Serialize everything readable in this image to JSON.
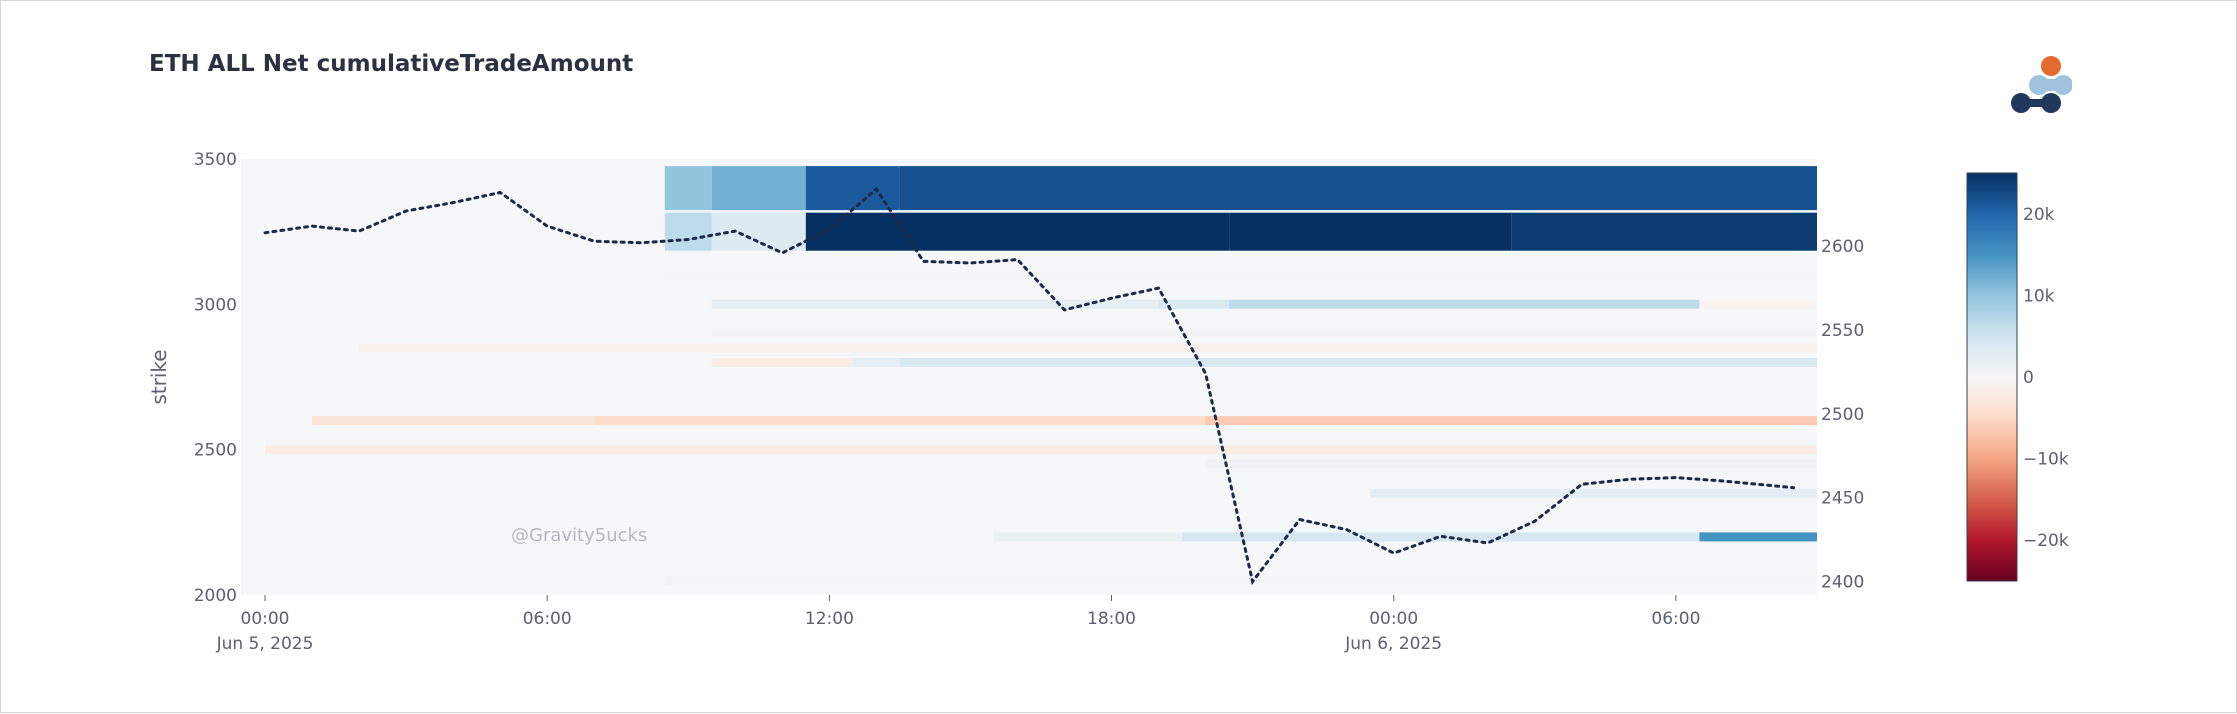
{
  "chart_data": {
    "type": "heatmap",
    "title": "ETH ALL Net cumulativeTradeAmount",
    "watermark": "@Gravity5ucks",
    "ylabel": "strike",
    "y_range": [
      2000,
      3500
    ],
    "y_ticks": [
      "3500",
      "3000",
      "2500",
      "2000"
    ],
    "y2_range": [
      2392,
      2652
    ],
    "y2_ticks": [
      "2600",
      "2550",
      "2500",
      "2450",
      "2400"
    ],
    "x_start": "2025-06-05T00:00",
    "x_end": "2025-06-06T09:00",
    "x_ticks": [
      {
        "t": "2025-06-05T00:00",
        "label": "00:00",
        "sub": "Jun 5, 2025"
      },
      {
        "t": "2025-06-05T06:00",
        "label": "06:00",
        "sub": ""
      },
      {
        "t": "2025-06-05T12:00",
        "label": "12:00",
        "sub": ""
      },
      {
        "t": "2025-06-05T18:00",
        "label": "18:00",
        "sub": ""
      },
      {
        "t": "2025-06-06T00:00",
        "label": "00:00",
        "sub": "Jun 6, 2025"
      },
      {
        "t": "2025-06-06T06:00",
        "label": "06:00",
        "sub": ""
      }
    ],
    "colorscale": {
      "min": -25000,
      "max": 25000,
      "ticks": [
        "20k",
        "10k",
        "0",
        "−10k",
        "−20k"
      ],
      "tick_values": [
        20000,
        10000,
        0,
        -10000,
        -20000
      ]
    },
    "heatmap_rows": [
      {
        "strike": 3400,
        "segments": [
          {
            "from": "2025-06-05T08:30",
            "to": "2025-06-05T09:30",
            "value": 10000
          },
          {
            "from": "2025-06-05T09:30",
            "to": "2025-06-05T11:30",
            "value": 12000
          },
          {
            "from": "2025-06-05T11:30",
            "to": "2025-06-05T13:30",
            "value": 21000
          },
          {
            "from": "2025-06-05T13:30",
            "to": "2025-06-06T09:00",
            "value": 22000
          }
        ]
      },
      {
        "strike": 3250,
        "segments": [
          {
            "from": "2025-06-05T08:30",
            "to": "2025-06-05T09:30",
            "value": 6500
          },
          {
            "from": "2025-06-05T09:30",
            "to": "2025-06-05T11:30",
            "value": 3500
          },
          {
            "from": "2025-06-05T11:30",
            "to": "2025-06-05T20:30",
            "value": 26000
          },
          {
            "from": "2025-06-05T20:30",
            "to": "2025-06-06T02:30",
            "value": 25000
          },
          {
            "from": "2025-06-06T02:30",
            "to": "2025-06-06T09:00",
            "value": 24000
          }
        ]
      },
      {
        "strike": 3100,
        "segments": [
          {
            "from": "2025-06-05T08:30",
            "to": "2025-06-06T09:00",
            "value": 500
          }
        ]
      },
      {
        "strike": 3000,
        "segments": [
          {
            "from": "2025-06-05T09:30",
            "to": "2025-06-05T19:00",
            "value": 2500
          },
          {
            "from": "2025-06-05T19:00",
            "to": "2025-06-05T20:30",
            "value": 4000
          },
          {
            "from": "2025-06-05T20:30",
            "to": "2025-06-06T06:30",
            "value": 6500
          },
          {
            "from": "2025-06-06T06:30",
            "to": "2025-06-06T09:00",
            "value": -700
          }
        ]
      },
      {
        "strike": 2900,
        "segments": [
          {
            "from": "2025-06-05T09:30",
            "to": "2025-06-06T09:00",
            "value": 700
          }
        ]
      },
      {
        "strike": 2850,
        "segments": [
          {
            "from": "2025-06-05T02:00",
            "to": "2025-06-06T09:00",
            "value": -1300
          }
        ]
      },
      {
        "strike": 2800,
        "segments": [
          {
            "from": "2025-06-05T09:30",
            "to": "2025-06-05T12:30",
            "value": -1800
          },
          {
            "from": "2025-06-05T12:30",
            "to": "2025-06-05T13:30",
            "value": 2500
          },
          {
            "from": "2025-06-05T13:30",
            "to": "2025-06-06T09:00",
            "value": 4200
          }
        ]
      },
      {
        "strike": 2600,
        "segments": [
          {
            "from": "2025-06-05T01:00",
            "to": "2025-06-05T07:00",
            "value": -3200
          },
          {
            "from": "2025-06-05T07:00",
            "to": "2025-06-05T20:00",
            "value": -4500
          },
          {
            "from": "2025-06-05T20:00",
            "to": "2025-06-06T09:00",
            "value": -6500
          }
        ]
      },
      {
        "strike": 2500,
        "segments": [
          {
            "from": "2025-06-05T00:00",
            "to": "2025-06-06T09:00",
            "value": -1800
          }
        ]
      },
      {
        "strike": 2450,
        "segments": [
          {
            "from": "2025-06-05T20:00",
            "to": "2025-06-06T09:00",
            "value": 1200
          }
        ]
      },
      {
        "strike": 2350,
        "segments": [
          {
            "from": "2025-06-05T23:30",
            "to": "2025-06-06T09:00",
            "value": 2500
          }
        ]
      },
      {
        "strike": 2200,
        "segments": [
          {
            "from": "2025-06-05T15:30",
            "to": "2025-06-05T19:30",
            "value": 1800
          },
          {
            "from": "2025-06-05T19:30",
            "to": "2025-06-06T06:30",
            "value": 4500
          },
          {
            "from": "2025-06-06T06:30",
            "to": "2025-06-06T09:00",
            "value": 15000
          }
        ]
      },
      {
        "strike": 2050,
        "segments": [
          {
            "from": "2025-06-05T08:30",
            "to": "2025-06-06T09:00",
            "value": 700
          }
        ]
      }
    ],
    "line": {
      "style": "dotted",
      "color": "#1c2a4a",
      "points": [
        [
          "2025-06-05T00:00",
          2608
        ],
        [
          "2025-06-05T01:00",
          2612
        ],
        [
          "2025-06-05T02:00",
          2609
        ],
        [
          "2025-06-05T03:00",
          2621
        ],
        [
          "2025-06-05T04:00",
          2626
        ],
        [
          "2025-06-05T05:00",
          2632
        ],
        [
          "2025-06-05T06:00",
          2612
        ],
        [
          "2025-06-05T07:00",
          2603
        ],
        [
          "2025-06-05T08:00",
          2602
        ],
        [
          "2025-06-05T09:00",
          2604
        ],
        [
          "2025-06-05T10:00",
          2609
        ],
        [
          "2025-06-05T11:00",
          2596
        ],
        [
          "2025-06-05T12:00",
          2610
        ],
        [
          "2025-06-05T13:00",
          2634
        ],
        [
          "2025-06-05T14:00",
          2591
        ],
        [
          "2025-06-05T15:00",
          2590
        ],
        [
          "2025-06-05T16:00",
          2592
        ],
        [
          "2025-06-05T17:00",
          2562
        ],
        [
          "2025-06-05T18:00",
          2569
        ],
        [
          "2025-06-05T19:00",
          2575
        ],
        [
          "2025-06-05T20:00",
          2524
        ],
        [
          "2025-06-05T21:00",
          2400
        ],
        [
          "2025-06-05T22:00",
          2437
        ],
        [
          "2025-06-05T23:00",
          2431
        ],
        [
          "2025-06-06T00:00",
          2417
        ],
        [
          "2025-06-06T01:00",
          2427
        ],
        [
          "2025-06-06T02:00",
          2423
        ],
        [
          "2025-06-06T03:00",
          2436
        ],
        [
          "2025-06-06T04:00",
          2458
        ],
        [
          "2025-06-06T05:00",
          2461
        ],
        [
          "2025-06-06T06:00",
          2462
        ],
        [
          "2025-06-06T07:00",
          2460
        ],
        [
          "2025-06-06T08:30",
          2456
        ]
      ]
    },
    "grid": false,
    "legend": "none (colorbar on right)"
  }
}
